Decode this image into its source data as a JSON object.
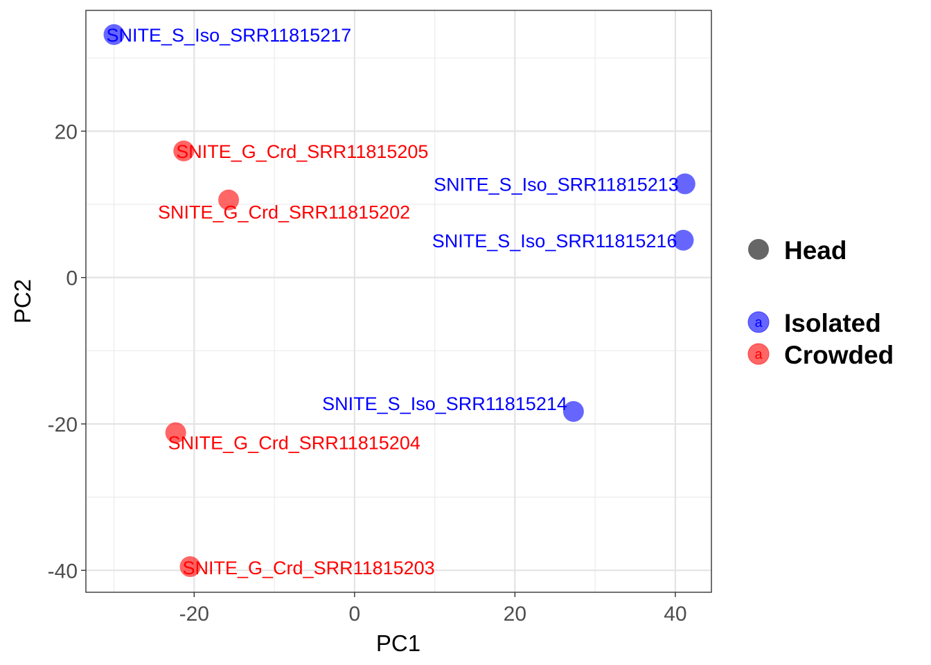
{
  "chart_data": {
    "type": "scatter",
    "title": "",
    "xlabel": "PC1",
    "ylabel": "PC2",
    "xlim": [
      -33.5,
      44.5
    ],
    "ylim": [
      -43,
      36.5
    ],
    "x_ticks": [
      -20,
      0,
      20,
      40
    ],
    "y_ticks": [
      -40,
      -20,
      0,
      20
    ],
    "x_tick_labels": [
      "-20",
      "0",
      "20",
      "40"
    ],
    "y_tick_labels": [
      "-40",
      "-20",
      "0",
      "20"
    ],
    "grid": true,
    "legend": {
      "placement": "right",
      "shape_title": "Head",
      "color_entries": [
        {
          "label": "Isolated",
          "color": "#0000ff",
          "glyph": "a"
        },
        {
          "label": "Crowded",
          "color": "#ff0000",
          "glyph": "a"
        }
      ]
    },
    "series": [
      {
        "name": "Isolated",
        "color": "#0000ff",
        "points": [
          {
            "x": -30.0,
            "y": 33.2,
            "label": "SNITE_S_Iso_SRR11815217",
            "anchor": "start"
          },
          {
            "x": 41.2,
            "y": 12.8,
            "label": "SNITE_S_Iso_SRR11815213",
            "anchor": "end"
          },
          {
            "x": 41.0,
            "y": 5.1,
            "label": "SNITE_S_Iso_SRR11815216",
            "anchor": "end"
          },
          {
            "x": 27.3,
            "y": -18.3,
            "label": "SNITE_S_Iso_SRR11815214",
            "anchor": "end"
          }
        ]
      },
      {
        "name": "Crowded",
        "color": "#ff0000",
        "points": [
          {
            "x": -21.3,
            "y": 17.3,
            "label": "SNITE_G_Crd_SRR11815205",
            "anchor": "start"
          },
          {
            "x": -15.7,
            "y": 10.6,
            "label": "SNITE_G_Crd_SRR11815202",
            "anchor": "middle"
          },
          {
            "x": -22.3,
            "y": -21.2,
            "label": "SNITE_G_Crd_SRR11815204",
            "anchor": "start"
          },
          {
            "x": -20.5,
            "y": -39.5,
            "label": "SNITE_G_Crd_SRR11815203",
            "anchor": "start"
          }
        ]
      }
    ]
  }
}
